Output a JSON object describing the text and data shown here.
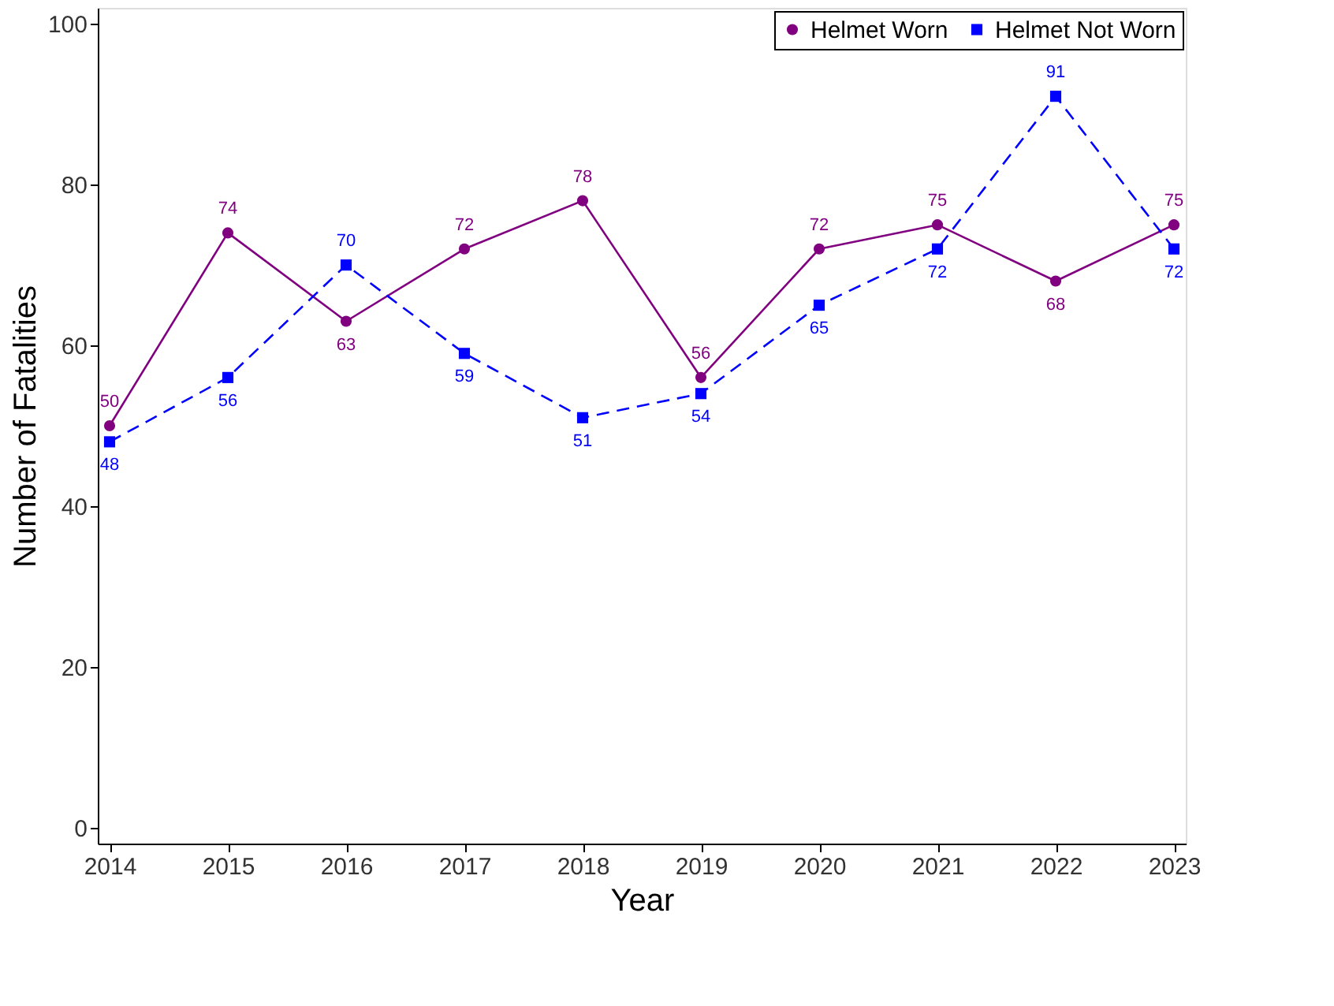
{
  "chart_data": {
    "type": "line",
    "xlabel": "Year",
    "ylabel": "Number of Fatalities",
    "categories": [
      "2014",
      "2015",
      "2016",
      "2017",
      "2018",
      "2019",
      "2020",
      "2021",
      "2022",
      "2023"
    ],
    "series": [
      {
        "name": "Helmet Worn",
        "color": "#800080",
        "values": [
          50,
          74,
          63,
          72,
          78,
          56,
          72,
          75,
          68,
          75
        ],
        "marker": "circle",
        "line_style": "solid"
      },
      {
        "name": "Helmet Not Worn",
        "color": "#0000ff",
        "values": [
          48,
          56,
          70,
          59,
          51,
          54,
          65,
          72,
          91,
          72
        ],
        "marker": "square",
        "line_style": "dashed"
      }
    ],
    "ylim": [
      -2,
      102
    ],
    "yticks": [
      0,
      20,
      40,
      60,
      80,
      100
    ],
    "grid": false,
    "legend": "top right",
    "data_labels": true
  }
}
